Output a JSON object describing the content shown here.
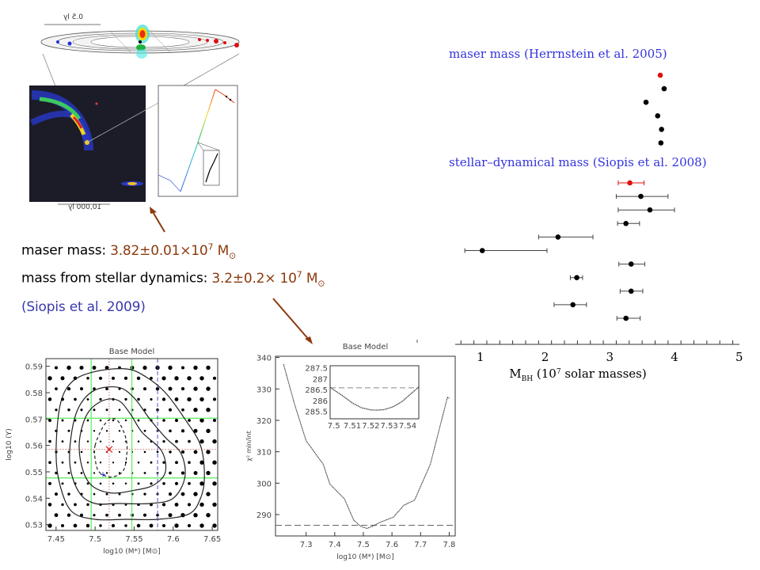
{
  "figures": {
    "disk_scale_label": "0.5 ly",
    "galaxy_scale_label": "10,000 ly"
  },
  "text": {
    "maser_label": "maser mass: ",
    "maser_value": "3.82±0.01×10",
    "maser_exp": "7",
    "stellar_label": "mass from stellar dynamics: ",
    "stellar_value": "3.2±0.2× 10",
    "stellar_exp": "7",
    "unit_m": "M",
    "unit_sun": "⊙",
    "citation": "(Siopis et al. 2009)"
  },
  "colors": {
    "value_text": "#8b3a0e",
    "citation_text": "#3a3ab0",
    "arrow": "#8b3a0e",
    "title_blue": "#3333dd",
    "highlight_red": "#e01010",
    "grid_green": "#66ee66"
  },
  "chart_data": [
    {
      "type": "scatter",
      "xlabel": "M_BH (10^7 solar masses)",
      "xlabel_main": "M",
      "xlabel_sub": "BH",
      "xlabel_rest": " (10",
      "xlabel_exp": "7",
      "xlabel_end": " solar masses)",
      "xlim": [
        0,
        5
      ],
      "xticks": [
        "1",
        "2",
        "3",
        "4",
        "5"
      ],
      "groups": [
        {
          "title": "maser mass (Herrnstein et al. 2005)",
          "points": [
            {
              "x": 3.78,
              "color": "#e01010"
            },
            {
              "x": 3.84
            },
            {
              "x": 3.56
            },
            {
              "x": 3.74
            },
            {
              "x": 3.8
            },
            {
              "x": 3.79
            }
          ]
        },
        {
          "title": "stellar–dynamical mass (Siopis et al. 2008)",
          "points": [
            {
              "x": 3.31,
              "lo": 3.13,
              "hi": 3.53,
              "color": "#e01010"
            },
            {
              "x": 3.48,
              "lo": 3.1,
              "hi": 3.9
            },
            {
              "x": 3.62,
              "lo": 3.13,
              "hi": 4.0
            },
            {
              "x": 3.25,
              "lo": 3.12,
              "hi": 3.46
            },
            {
              "x": 2.2,
              "lo": 1.9,
              "hi": 2.74
            },
            {
              "x": 1.03,
              "lo": 0.76,
              "hi": 2.03
            },
            {
              "x": 3.33,
              "lo": 3.14,
              "hi": 3.54
            },
            {
              "x": 2.49,
              "lo": 2.39,
              "hi": 2.58
            },
            {
              "x": 3.33,
              "lo": 3.16,
              "hi": 3.51
            },
            {
              "x": 2.43,
              "lo": 2.14,
              "hi": 2.64
            },
            {
              "x": 3.25,
              "lo": 3.11,
              "hi": 3.47
            }
          ]
        }
      ]
    },
    {
      "type": "contour",
      "title": "Base Model",
      "xlabel": "log10 (M*) [M⊙]",
      "ylabel": "log10 (Υ)",
      "xlim": [
        7.437,
        7.657
      ],
      "ylim": [
        0.5278,
        0.5929
      ],
      "xticks": [
        7.45,
        7.5,
        7.55,
        7.6,
        7.65
      ],
      "xtick_labels": [
        "7.45",
        "7.5",
        "7.55",
        "7.6",
        "7.65"
      ],
      "yticks": [
        0.53,
        0.54,
        0.55,
        0.56,
        0.57,
        0.58,
        0.59
      ],
      "ytick_labels": [
        "0.53",
        "0.54",
        "0.55",
        "0.56",
        "0.57",
        "0.58",
        "0.59"
      ],
      "green_x": [
        7.495,
        7.547
      ],
      "green_y": [
        0.5703,
        0.5477
      ],
      "best_fit": {
        "x": 7.518,
        "y": 0.5585
      },
      "blue_dashed_x": 7.58,
      "blue_plus": {
        "x": 7.51,
        "y": 0.549
      },
      "contours": [
        {
          "style": "solid",
          "points": [
            [
              7.455,
              0.575
            ],
            [
              7.47,
              0.584
            ],
            [
              7.5,
              0.588
            ],
            [
              7.54,
              0.589
            ],
            [
              7.565,
              0.586
            ],
            [
              7.59,
              0.58
            ],
            [
              7.615,
              0.57
            ],
            [
              7.635,
              0.56
            ],
            [
              7.64,
              0.548
            ],
            [
              7.635,
              0.54
            ],
            [
              7.62,
              0.534
            ],
            [
              7.58,
              0.532
            ],
            [
              7.54,
              0.532
            ],
            [
              7.5,
              0.532
            ],
            [
              7.47,
              0.535
            ],
            [
              7.455,
              0.545
            ],
            [
              7.45,
              0.557
            ]
          ]
        },
        {
          "style": "solid",
          "points": [
            [
              7.47,
              0.565
            ],
            [
              7.48,
              0.575
            ],
            [
              7.5,
              0.581
            ],
            [
              7.53,
              0.582
            ],
            [
              7.55,
              0.578
            ],
            [
              7.57,
              0.57
            ],
            [
              7.59,
              0.563
            ],
            [
              7.61,
              0.557
            ],
            [
              7.615,
              0.548
            ],
            [
              7.6,
              0.54
            ],
            [
              7.57,
              0.538
            ],
            [
              7.53,
              0.538
            ],
            [
              7.5,
              0.538
            ],
            [
              7.48,
              0.542
            ],
            [
              7.468,
              0.552
            ]
          ]
        },
        {
          "style": "solid",
          "points": [
            [
              7.48,
              0.562
            ],
            [
              7.49,
              0.572
            ],
            [
              7.51,
              0.577
            ],
            [
              7.53,
              0.577
            ],
            [
              7.545,
              0.572
            ],
            [
              7.56,
              0.565
            ],
            [
              7.585,
              0.558
            ],
            [
              7.59,
              0.55
            ],
            [
              7.575,
              0.545
            ],
            [
              7.55,
              0.543
            ],
            [
              7.52,
              0.542
            ],
            [
              7.495,
              0.545
            ],
            [
              7.483,
              0.552
            ]
          ]
        },
        {
          "style": "dashed",
          "points": [
            [
              7.5,
              0.56
            ],
            [
              7.51,
              0.567
            ],
            [
              7.52,
              0.57
            ],
            [
              7.53,
              0.569
            ],
            [
              7.54,
              0.562
            ],
            [
              7.54,
              0.555
            ],
            [
              7.535,
              0.55
            ],
            [
              7.52,
              0.548
            ],
            [
              7.505,
              0.55
            ],
            [
              7.5,
              0.555
            ]
          ]
        }
      ]
    },
    {
      "type": "line",
      "title": "Base Model",
      "xlabel": "log10 (M*) [M⊙]",
      "ylabel": "χ² min/int",
      "xlim": [
        7.193,
        7.821
      ],
      "ylim": [
        283.2,
        340.4
      ],
      "xticks": [
        7.3,
        7.4,
        7.5,
        7.6,
        7.7,
        7.8
      ],
      "xtick_labels": [
        "7.3",
        "7.4",
        "7.5",
        "7.6",
        "7.7",
        "7.8"
      ],
      "yticks": [
        290,
        300,
        310,
        320,
        330,
        340
      ],
      "ytick_labels": [
        "290",
        "300",
        "310",
        "320",
        "330",
        "340"
      ],
      "threshold": 286.6,
      "x": [
        7.221,
        7.26,
        7.3,
        7.36,
        7.383,
        7.434,
        7.466,
        7.49,
        7.512,
        7.53,
        7.558,
        7.605,
        7.642,
        7.679,
        7.734,
        7.794,
        7.8
      ],
      "y": [
        337.9,
        325,
        313.5,
        306,
        299.7,
        295,
        288.3,
        286.3,
        285.6,
        286.2,
        287.5,
        289.2,
        293,
        294.6,
        306,
        327.4,
        327
      ],
      "inset": {
        "xlim": [
          7.498,
          7.546
        ],
        "ylim": [
          285.15,
          287.6
        ],
        "xticks": [
          7.5,
          7.51,
          7.52,
          7.53,
          7.54
        ],
        "xtick_labels": [
          "7.5",
          "7.51",
          "7.52",
          "7.53",
          "7.54"
        ],
        "yticks": [
          285.5,
          286,
          286.5,
          287,
          287.5
        ],
        "ytick_labels": [
          "285.5",
          "286",
          "286.5",
          "287",
          "287.5"
        ],
        "threshold": 286.58,
        "x": [
          7.498,
          7.505,
          7.51,
          7.515,
          7.52,
          7.523,
          7.527,
          7.532,
          7.537,
          7.541,
          7.546
        ],
        "y": [
          286.6,
          286.2,
          285.88,
          285.66,
          285.56,
          285.55,
          285.57,
          285.7,
          285.95,
          286.25,
          286.62
        ]
      }
    }
  ]
}
